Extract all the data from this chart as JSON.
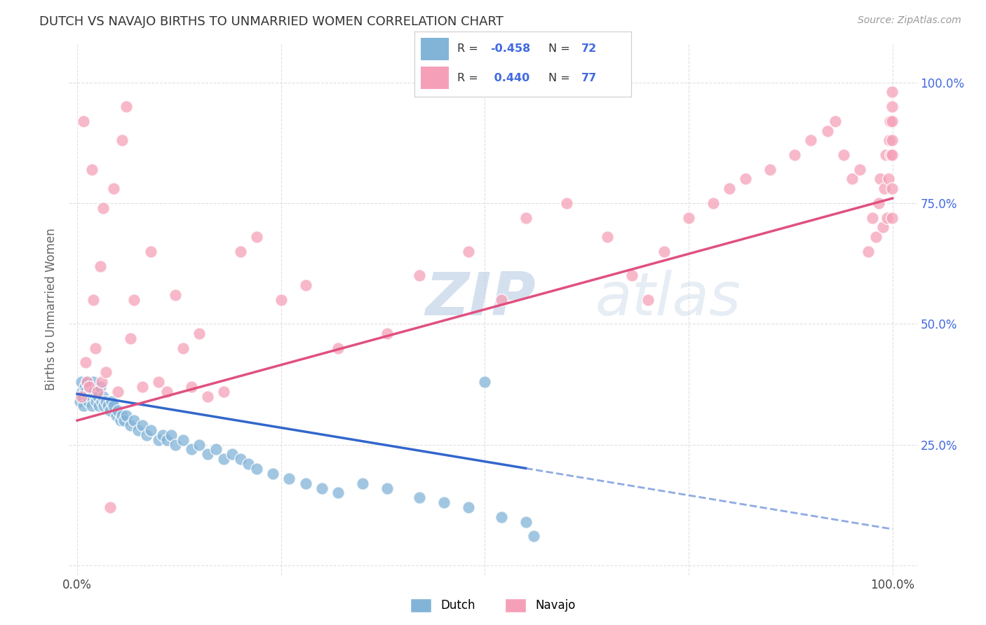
{
  "title": "DUTCH VS NAVAJO BIRTHS TO UNMARRIED WOMEN CORRELATION CHART",
  "source": "Source: ZipAtlas.com",
  "ylabel": "Births to Unmarried Women",
  "xlim": [
    0,
    1
  ],
  "ylim": [
    0,
    1
  ],
  "dutch_color": "#82b4d8",
  "navajo_color": "#f5a0b8",
  "dutch_line_color": "#3366cc",
  "navajo_line_color": "#e05080",
  "dutch_line_solid_end": 0.55,
  "dutch_slope": -0.28,
  "dutch_intercept": 0.355,
  "navajo_slope": 0.46,
  "navajo_intercept": 0.3,
  "R_dutch": -0.458,
  "N_dutch": 72,
  "R_navajo": 0.44,
  "N_navajo": 77,
  "background_color": "#ffffff",
  "grid_color": "#dddddd",
  "watermark_zip": "ZIP",
  "watermark_atlas": "atlas",
  "right_tick_color": "#4169e1",
  "legend_R_color": "#4169e1",
  "legend_text_color": "#333333",
  "dutch_scatter": {
    "x": [
      0.003,
      0.005,
      0.006,
      0.007,
      0.008,
      0.009,
      0.01,
      0.012,
      0.013,
      0.014,
      0.015,
      0.016,
      0.017,
      0.018,
      0.019,
      0.02,
      0.021,
      0.022,
      0.023,
      0.025,
      0.026,
      0.027,
      0.028,
      0.03,
      0.032,
      0.033,
      0.035,
      0.038,
      0.04,
      0.042,
      0.045,
      0.048,
      0.05,
      0.053,
      0.055,
      0.058,
      0.06,
      0.065,
      0.07,
      0.075,
      0.08,
      0.085,
      0.09,
      0.1,
      0.105,
      0.11,
      0.115,
      0.12,
      0.13,
      0.14,
      0.15,
      0.16,
      0.17,
      0.18,
      0.19,
      0.2,
      0.21,
      0.22,
      0.24,
      0.26,
      0.28,
      0.3,
      0.32,
      0.35,
      0.38,
      0.42,
      0.45,
      0.48,
      0.5,
      0.52,
      0.55,
      0.56
    ],
    "y": [
      0.34,
      0.38,
      0.36,
      0.35,
      0.33,
      0.37,
      0.36,
      0.38,
      0.35,
      0.34,
      0.36,
      0.37,
      0.35,
      0.33,
      0.36,
      0.38,
      0.36,
      0.35,
      0.34,
      0.36,
      0.35,
      0.33,
      0.37,
      0.34,
      0.35,
      0.33,
      0.34,
      0.33,
      0.32,
      0.34,
      0.33,
      0.31,
      0.32,
      0.3,
      0.31,
      0.3,
      0.31,
      0.29,
      0.3,
      0.28,
      0.29,
      0.27,
      0.28,
      0.26,
      0.27,
      0.26,
      0.27,
      0.25,
      0.26,
      0.24,
      0.25,
      0.23,
      0.24,
      0.22,
      0.23,
      0.22,
      0.21,
      0.2,
      0.19,
      0.18,
      0.17,
      0.16,
      0.15,
      0.17,
      0.16,
      0.14,
      0.13,
      0.12,
      0.38,
      0.1,
      0.09,
      0.06
    ]
  },
  "navajo_scatter": {
    "x": [
      0.005,
      0.008,
      0.01,
      0.012,
      0.015,
      0.018,
      0.02,
      0.022,
      0.025,
      0.028,
      0.03,
      0.032,
      0.035,
      0.04,
      0.045,
      0.05,
      0.055,
      0.06,
      0.065,
      0.07,
      0.08,
      0.09,
      0.1,
      0.11,
      0.12,
      0.13,
      0.14,
      0.15,
      0.16,
      0.18,
      0.2,
      0.22,
      0.25,
      0.28,
      0.32,
      0.38,
      0.42,
      0.48,
      0.52,
      0.55,
      0.6,
      0.65,
      0.68,
      0.7,
      0.72,
      0.75,
      0.78,
      0.8,
      0.82,
      0.85,
      0.88,
      0.9,
      0.92,
      0.93,
      0.94,
      0.95,
      0.96,
      0.97,
      0.975,
      0.98,
      0.983,
      0.985,
      0.988,
      0.99,
      0.992,
      0.993,
      0.995,
      0.996,
      0.997,
      0.998,
      0.999,
      0.999,
      0.999,
      0.999,
      0.999,
      0.999,
      0.999
    ],
    "y": [
      0.35,
      0.92,
      0.42,
      0.38,
      0.37,
      0.82,
      0.55,
      0.45,
      0.36,
      0.62,
      0.38,
      0.74,
      0.4,
      0.12,
      0.78,
      0.36,
      0.88,
      0.95,
      0.47,
      0.55,
      0.37,
      0.65,
      0.38,
      0.36,
      0.56,
      0.45,
      0.37,
      0.48,
      0.35,
      0.36,
      0.65,
      0.68,
      0.55,
      0.58,
      0.45,
      0.48,
      0.6,
      0.65,
      0.55,
      0.72,
      0.75,
      0.68,
      0.6,
      0.55,
      0.65,
      0.72,
      0.75,
      0.78,
      0.8,
      0.82,
      0.85,
      0.88,
      0.9,
      0.92,
      0.85,
      0.8,
      0.82,
      0.65,
      0.72,
      0.68,
      0.75,
      0.8,
      0.7,
      0.78,
      0.85,
      0.72,
      0.8,
      0.88,
      0.92,
      0.85,
      0.98,
      0.95,
      0.92,
      0.88,
      0.85,
      0.78,
      0.72
    ]
  }
}
